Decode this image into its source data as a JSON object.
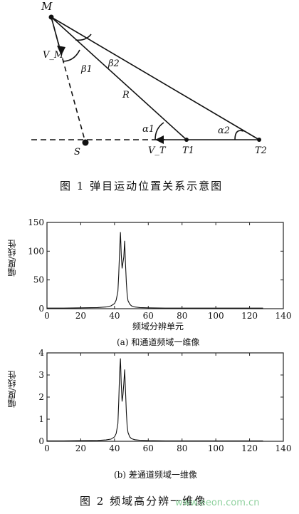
{
  "fig1": {
    "labels": {
      "M": "M",
      "VM": "V_M",
      "beta1": "β1",
      "beta2": "β2",
      "R": "R",
      "alpha1": "α1",
      "alpha2": "α2",
      "VT": "V_T",
      "T1": "T1",
      "T2": "T2",
      "S": "S"
    },
    "caption": "图 1   弹目运动位置关系示意图"
  },
  "charts": [
    {
      "type": "line",
      "ylabel": "幅度/线性",
      "xlabel": "频域分辨单元",
      "subcaption": "(a)  和通道频域一维像",
      "xlim": [
        0,
        140
      ],
      "ylim": [
        0,
        150
      ],
      "xticks": [
        0,
        20,
        40,
        60,
        80,
        100,
        120,
        140
      ],
      "yticks": [
        0,
        50,
        100,
        150
      ],
      "x": [
        0,
        10,
        20,
        30,
        35,
        38,
        40,
        41,
        42,
        42.5,
        43,
        43.5,
        44,
        44.5,
        45,
        45.5,
        46,
        46.5,
        47,
        47.5,
        48,
        49,
        50,
        52,
        55,
        60,
        70,
        80,
        100,
        120,
        128
      ],
      "y": [
        1,
        1,
        1.5,
        2,
        3,
        5,
        9,
        15,
        30,
        60,
        100,
        133,
        95,
        70,
        80,
        90,
        118,
        78,
        45,
        25,
        14,
        8,
        5,
        3,
        2,
        1.5,
        1,
        1,
        1,
        1,
        1
      ]
    },
    {
      "type": "line",
      "ylabel": "幅度/线性",
      "xlabel": "",
      "subcaption": "(b)  差通道频域一维像",
      "xlim": [
        0,
        140
      ],
      "ylim": [
        0,
        4
      ],
      "xticks": [
        0,
        20,
        40,
        60,
        80,
        100,
        120,
        140
      ],
      "yticks": [
        0,
        1,
        2,
        3,
        4
      ],
      "x": [
        0,
        10,
        20,
        30,
        35,
        38,
        40,
        41,
        42,
        42.5,
        43,
        43.5,
        44,
        44.5,
        45,
        45.5,
        46,
        46.5,
        47,
        47.5,
        48,
        49,
        50,
        52,
        55,
        60,
        70,
        80,
        100,
        120,
        128
      ],
      "y": [
        0.02,
        0.02,
        0.03,
        0.04,
        0.06,
        0.1,
        0.2,
        0.35,
        0.8,
        1.8,
        3.1,
        3.75,
        2.6,
        1.8,
        2.1,
        2.6,
        3.25,
        2.3,
        1.3,
        0.7,
        0.4,
        0.2,
        0.12,
        0.07,
        0.05,
        0.03,
        0.02,
        0.02,
        0.02,
        0.02,
        0.02
      ]
    }
  ],
  "fig2": {
    "caption": "图 2   频域高分辨一维像"
  },
  "watermark": "www.eeon.com.cn"
}
